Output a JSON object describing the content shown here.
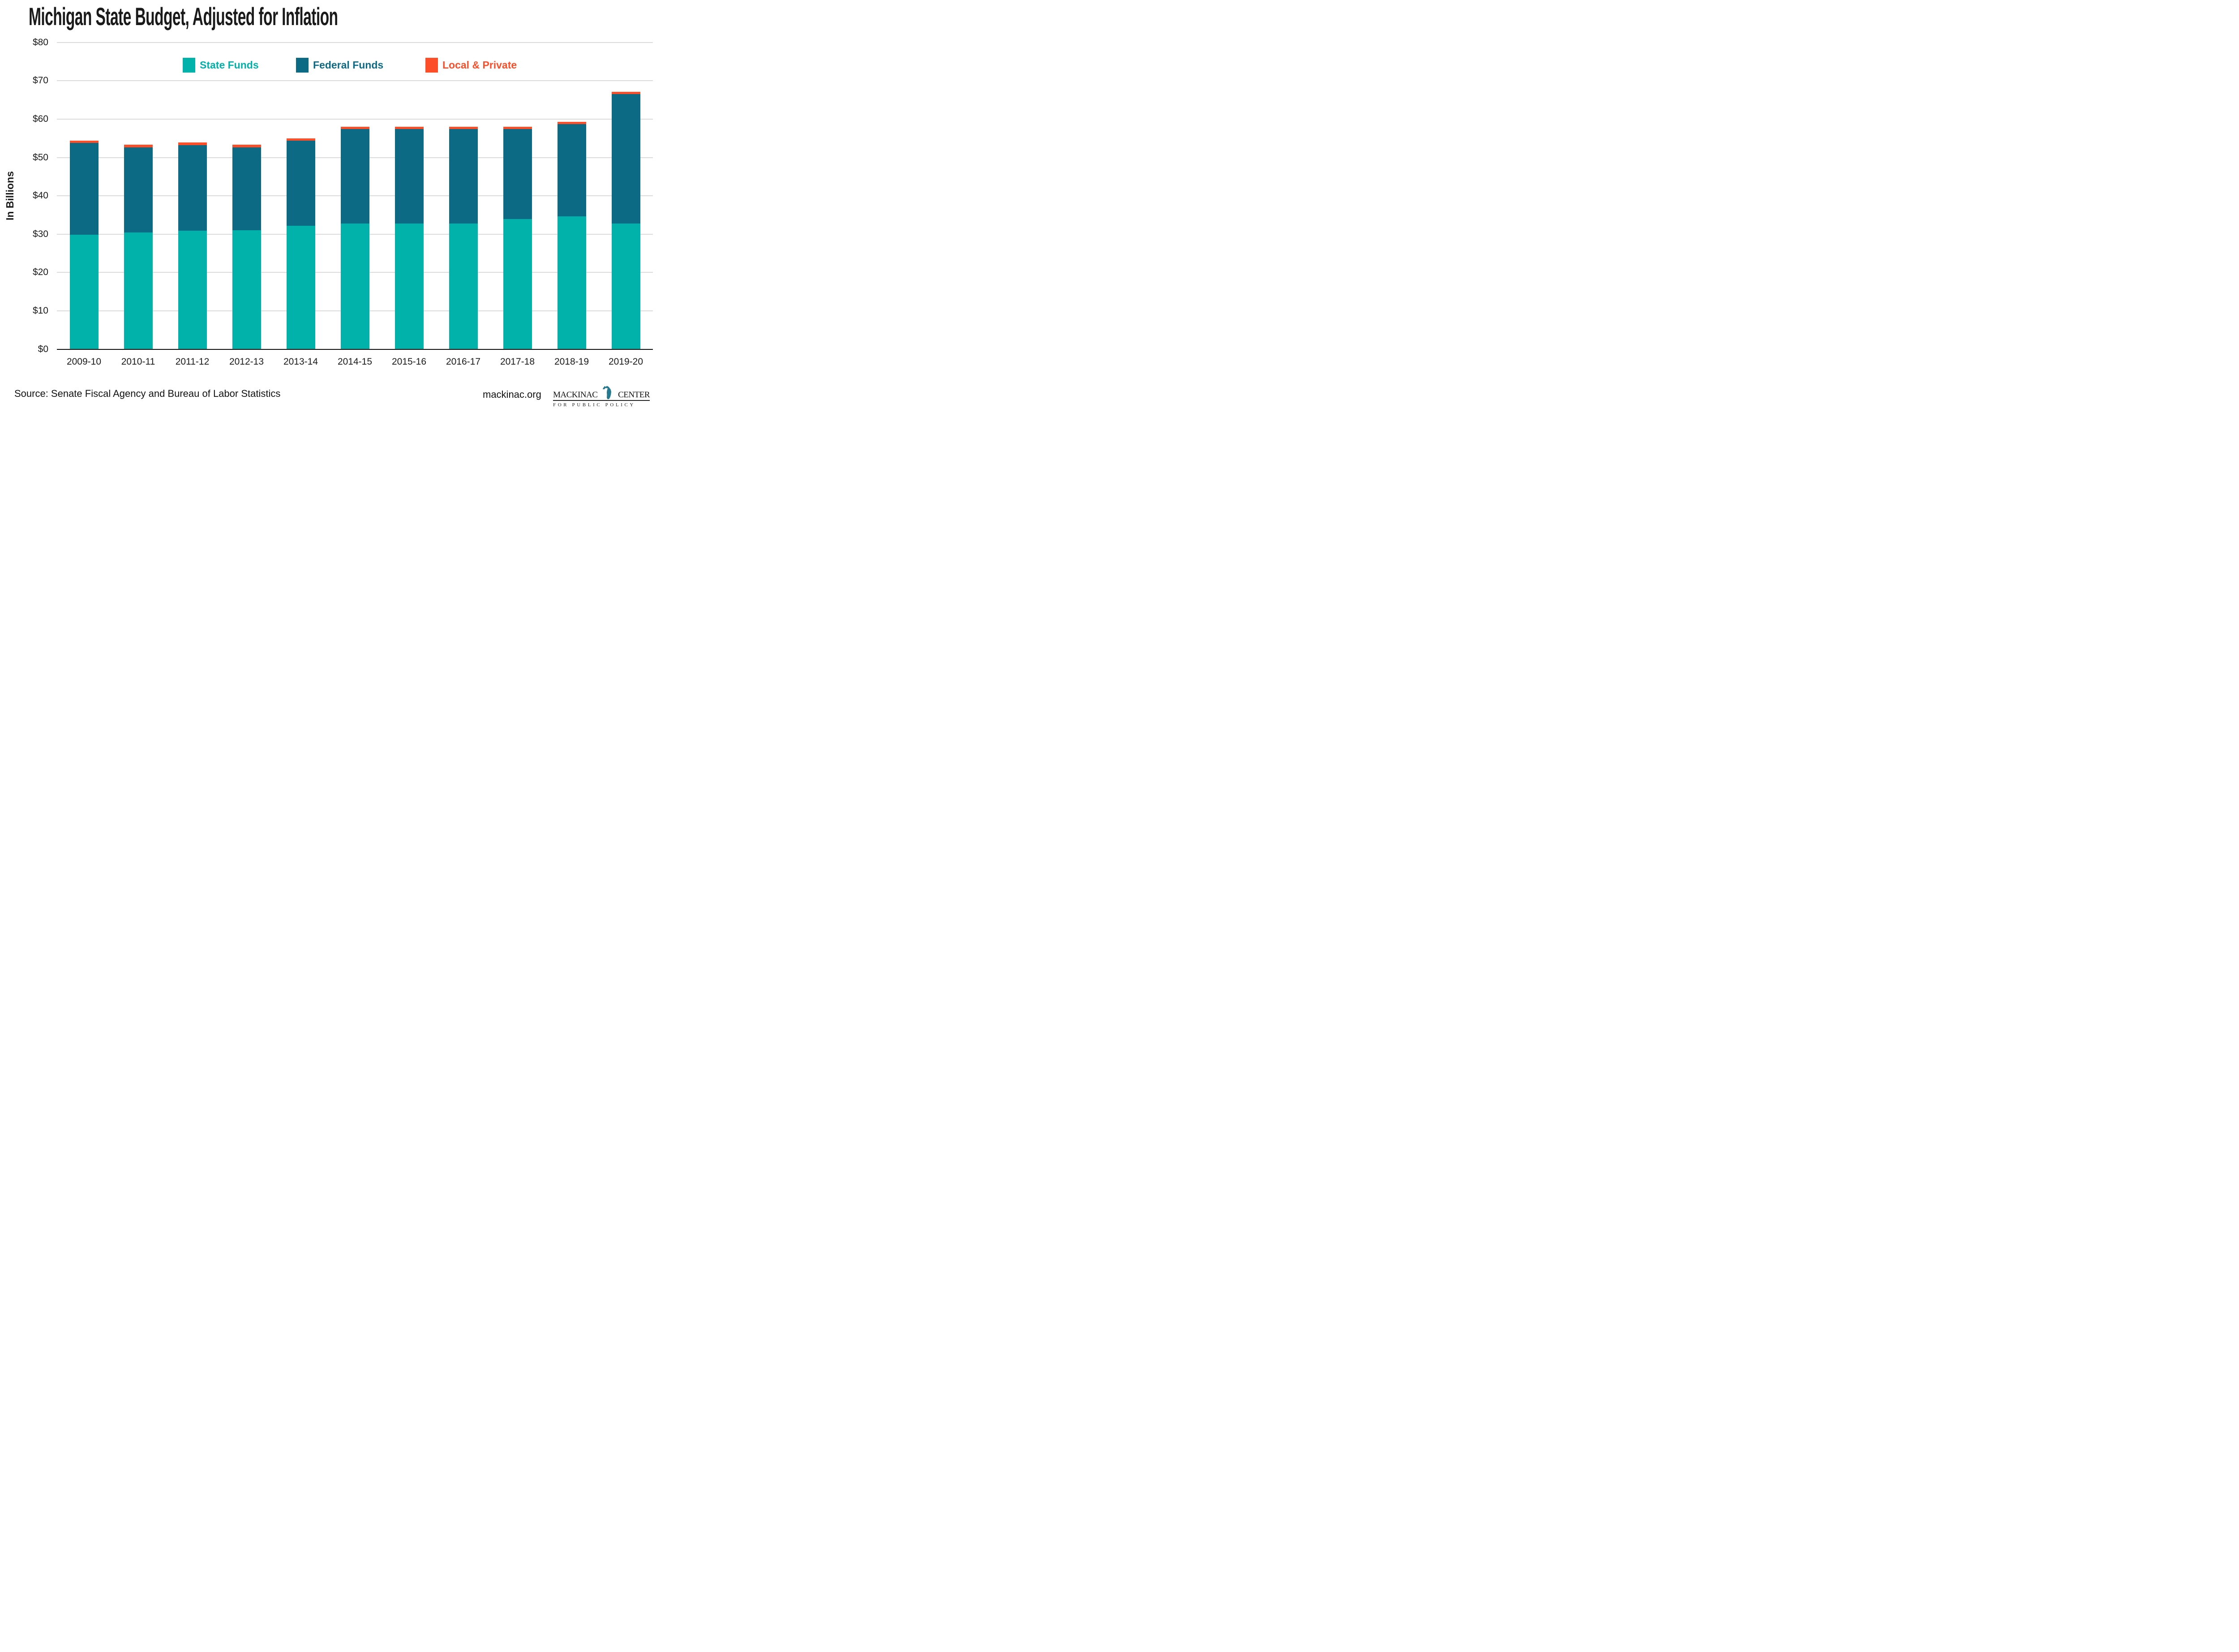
{
  "title": "Michigan State Budget, Adjusted for Inflation",
  "y_axis": {
    "label": "In Billions",
    "ticks": [
      "$0",
      "$10",
      "$20",
      "$30",
      "$40",
      "$50",
      "$60",
      "$70",
      "$80"
    ]
  },
  "legend": {
    "items": [
      {
        "label": "State Funds",
        "color": "#00B2A9"
      },
      {
        "label": "Federal Funds",
        "color": "#0C6A84"
      },
      {
        "label": "Local & Private",
        "color": "#FB4E29"
      }
    ]
  },
  "chart_data": {
    "type": "bar",
    "stacked": true,
    "title": "Michigan State Budget, Adjusted for Inflation",
    "xlabel": "",
    "ylabel": "In Billions",
    "ylim": [
      0,
      80
    ],
    "ytick_step": 10,
    "ytick_prefix": "$",
    "grid": true,
    "legend_position": "top-inside",
    "categories": [
      "2009-10",
      "2010-11",
      "2011-12",
      "2012-13",
      "2013-14",
      "2014-15",
      "2015-16",
      "2016-17",
      "2017-18",
      "2018-19",
      "2019-20"
    ],
    "series": [
      {
        "name": "State Funds",
        "color": "#00B2A9",
        "values": [
          29.8,
          30.4,
          30.9,
          31.0,
          32.2,
          32.8,
          32.8,
          32.8,
          34.0,
          34.6,
          32.8
        ]
      },
      {
        "name": "Federal Funds",
        "color": "#0C6A84",
        "values": [
          24.0,
          22.2,
          22.3,
          21.6,
          22.2,
          24.6,
          24.6,
          24.6,
          23.4,
          24.1,
          33.7
        ]
      },
      {
        "name": "Local & Private",
        "color": "#FB4E29",
        "values": [
          0.6,
          0.7,
          0.7,
          0.7,
          0.6,
          0.6,
          0.6,
          0.6,
          0.6,
          0.6,
          0.6
        ]
      }
    ],
    "totals": [
      54.4,
      53.3,
      53.9,
      53.3,
      55.0,
      58.0,
      58.0,
      58.0,
      58.0,
      59.3,
      67.1
    ]
  },
  "footer": {
    "source": "Source: Senate Fiscal Agency and Bureau of Labor Statistics",
    "site": "mackinac.org",
    "logo": {
      "name_left": "MACKINAC",
      "name_right": "CENTER",
      "tagline": "FOR PUBLIC POLICY",
      "michigan_color": "#26798E"
    }
  }
}
